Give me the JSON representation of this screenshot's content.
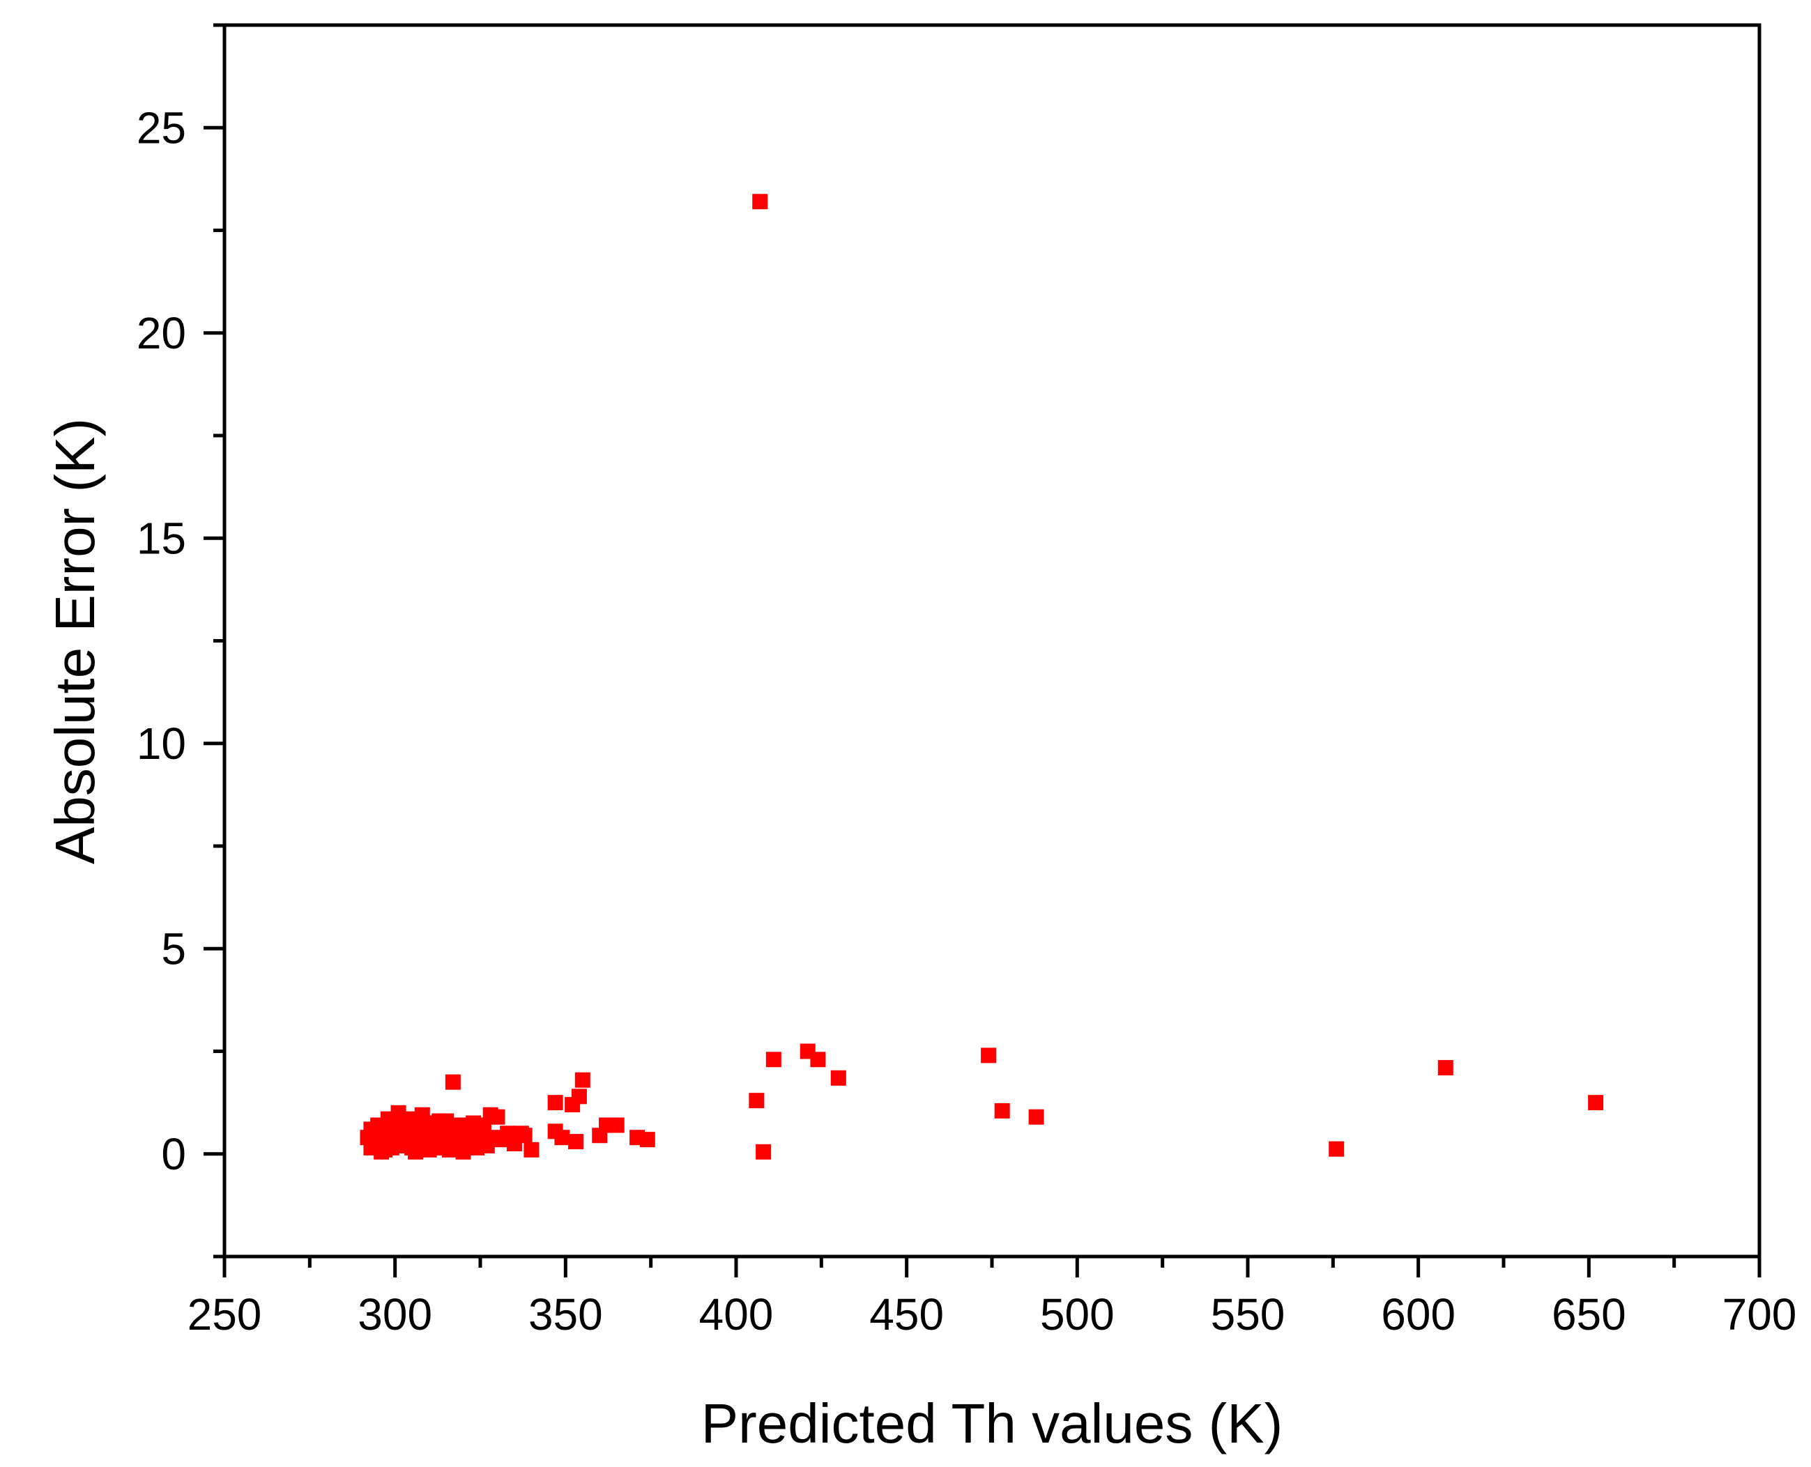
{
  "chart_data": {
    "type": "scatter",
    "title": "",
    "xlabel": "Predicted Th values (K)",
    "ylabel": "Absolute Error (K)",
    "xlim": [
      250,
      700
    ],
    "ylim": [
      -2.5,
      27.5
    ],
    "x_ticks": [
      250,
      300,
      350,
      400,
      450,
      500,
      550,
      600,
      650,
      700
    ],
    "y_ticks": [
      0,
      5,
      10,
      15,
      20,
      25
    ],
    "x_tick_labels": [
      "250",
      "300",
      "350",
      "400",
      "450",
      "500",
      "550",
      "600",
      "650",
      "700"
    ],
    "y_tick_labels": [
      "0",
      "5",
      "10",
      "15",
      "20",
      "25"
    ],
    "grid": false,
    "legend": "none",
    "marker": "square",
    "marker_color": "#ff0000",
    "series": [
      {
        "points": [
          [
            407,
            23.2
          ],
          [
            317,
            1.75
          ],
          [
            355,
            1.8
          ],
          [
            354,
            1.4
          ],
          [
            352,
            1.2
          ],
          [
            347,
            1.25
          ],
          [
            353,
            0.3
          ],
          [
            347,
            0.55
          ],
          [
            349,
            0.4
          ],
          [
            360,
            0.45
          ],
          [
            362,
            0.7
          ],
          [
            365,
            0.7
          ],
          [
            371,
            0.4
          ],
          [
            374,
            0.35
          ],
          [
            406,
            1.3
          ],
          [
            408,
            0.05
          ],
          [
            411,
            2.3
          ],
          [
            421,
            2.5
          ],
          [
            424,
            2.3
          ],
          [
            430,
            1.85
          ],
          [
            474,
            2.4
          ],
          [
            478,
            1.05
          ],
          [
            488,
            0.9
          ],
          [
            576,
            0.12
          ],
          [
            608,
            2.1
          ],
          [
            652,
            1.25
          ],
          [
            340,
            0.1
          ],
          [
            337,
            0.5
          ],
          [
            335,
            0.25
          ],
          [
            331,
            0.35
          ],
          [
            330,
            0.9
          ],
          [
            328,
            0.95
          ],
          [
            327,
            0.2
          ],
          [
            326,
            0.6
          ],
          [
            325,
            0.7
          ],
          [
            324,
            0.4
          ],
          [
            323,
            0.75
          ],
          [
            322,
            0.3
          ],
          [
            321,
            0.55
          ],
          [
            320,
            0.05
          ],
          [
            319,
            0.7
          ],
          [
            318,
            0.25
          ],
          [
            316,
            0.45
          ],
          [
            315,
            0.8
          ],
          [
            314,
            0.15
          ],
          [
            313,
            0.6
          ],
          [
            312,
            0.35
          ],
          [
            311,
            0.75
          ],
          [
            310,
            0.1
          ],
          [
            309,
            0.5
          ],
          [
            308,
            0.95
          ],
          [
            307,
            0.3
          ],
          [
            306,
            0.65
          ],
          [
            305,
            0.15
          ],
          [
            304,
            0.85
          ],
          [
            303,
            0.4
          ],
          [
            302,
            0.7
          ],
          [
            301,
            1.0
          ],
          [
            300,
            0.2
          ],
          [
            299,
            0.55
          ],
          [
            298,
            0.85
          ],
          [
            297,
            0.1
          ],
          [
            296,
            0.45
          ],
          [
            295,
            0.7
          ],
          [
            294,
            0.25
          ],
          [
            293,
            0.6
          ],
          [
            292,
            0.4
          ],
          [
            293,
            0.15
          ],
          [
            294,
            0.5
          ],
          [
            295,
            0.3
          ],
          [
            296,
            0.05
          ],
          [
            297,
            0.6
          ],
          [
            298,
            0.35
          ],
          [
            299,
            0.15
          ],
          [
            300,
            0.75
          ],
          [
            301,
            0.45
          ],
          [
            302,
            0.2
          ],
          [
            303,
            0.8
          ],
          [
            304,
            0.5
          ],
          [
            305,
            0.25
          ],
          [
            306,
            0.05
          ],
          [
            307,
            0.7
          ],
          [
            308,
            0.45
          ],
          [
            309,
            0.2
          ],
          [
            310,
            0.65
          ],
          [
            311,
            0.4
          ],
          [
            312,
            0.15
          ],
          [
            313,
            0.8
          ],
          [
            314,
            0.5
          ],
          [
            315,
            0.3
          ],
          [
            316,
            0.1
          ],
          [
            318,
            0.6
          ],
          [
            319,
            0.35
          ],
          [
            321,
            0.2
          ],
          [
            322,
            0.65
          ],
          [
            324,
            0.15
          ],
          [
            326,
            0.35
          ],
          [
            329,
            0.4
          ],
          [
            333,
            0.5
          ],
          [
            338,
            0.45
          ]
        ]
      }
    ]
  }
}
